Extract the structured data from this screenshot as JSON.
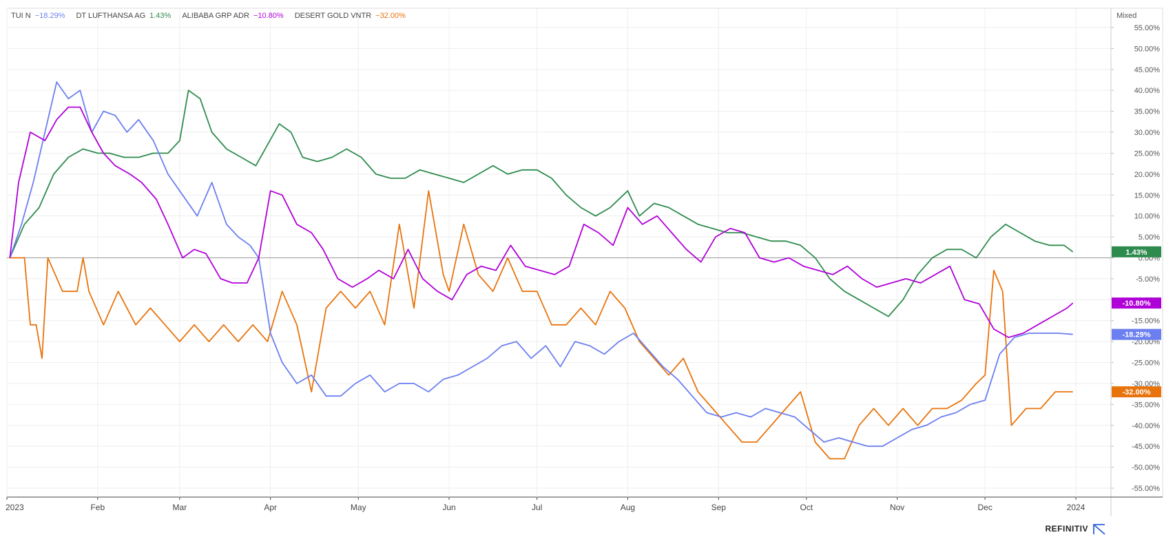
{
  "scale_label": "Mixed",
  "brand": "REFINITIV",
  "colors": {
    "TUI N": "#6b7ff0",
    "DT LUFTHANSA AG": "#2e8b4e",
    "ALIBABA GRP ADR": "#b000d8",
    "DESERT GOLD VNTR": "#e8730c",
    "baseline": "#999999",
    "grid": "#eeeeee"
  },
  "chart_data": {
    "type": "line",
    "title": "",
    "xlabel": "",
    "ylabel": "",
    "ylim": [
      -55,
      55
    ],
    "y_ticks": [
      "55.00%",
      "50.00%",
      "45.00%",
      "40.00%",
      "35.00%",
      "30.00%",
      "25.00%",
      "20.00%",
      "15.00%",
      "10.00%",
      "5.00%",
      "0.00%",
      "-5.00%",
      "-10.00%",
      "-15.00%",
      "-20.00%",
      "-25.00%",
      "-30.00%",
      "-35.00%",
      "-40.00%",
      "-45.00%",
      "-50.00%",
      "-55.00%"
    ],
    "x_tick_labels": [
      "2023",
      "Feb",
      "Mar",
      "Apr",
      "May",
      "Jun",
      "Jul",
      "Aug",
      "Sep",
      "Oct",
      "Nov",
      "Dec",
      "2024"
    ],
    "x_tick_dates": [
      "2023-01-01",
      "2023-02-01",
      "2023-03-01",
      "2023-04-01",
      "2023-05-01",
      "2023-06-01",
      "2023-07-01",
      "2023-08-01",
      "2023-09-01",
      "2023-10-01",
      "2023-11-01",
      "2023-12-01",
      "2024-01-01"
    ],
    "legend_position": "top-left",
    "grid": true,
    "series": [
      {
        "name": "TUI N",
        "last_label": "−18.29%",
        "badge_label": "-18.29%",
        "x": [
          "2023-01-02",
          "2023-01-06",
          "2023-01-10",
          "2023-01-14",
          "2023-01-18",
          "2023-01-22",
          "2023-01-26",
          "2023-01-30",
          "2023-02-03",
          "2023-02-07",
          "2023-02-11",
          "2023-02-15",
          "2023-02-20",
          "2023-02-25",
          "2023-03-02",
          "2023-03-07",
          "2023-03-12",
          "2023-03-17",
          "2023-03-21",
          "2023-03-25",
          "2023-03-28",
          "2023-04-01",
          "2023-04-05",
          "2023-04-10",
          "2023-04-15",
          "2023-04-20",
          "2023-04-25",
          "2023-04-30",
          "2023-05-05",
          "2023-05-10",
          "2023-05-15",
          "2023-05-20",
          "2023-05-25",
          "2023-05-30",
          "2023-06-04",
          "2023-06-09",
          "2023-06-14",
          "2023-06-19",
          "2023-06-24",
          "2023-06-29",
          "2023-07-04",
          "2023-07-09",
          "2023-07-14",
          "2023-07-19",
          "2023-07-24",
          "2023-07-29",
          "2023-08-03",
          "2023-08-08",
          "2023-08-13",
          "2023-08-18",
          "2023-08-23",
          "2023-08-28",
          "2023-09-02",
          "2023-09-07",
          "2023-09-12",
          "2023-09-17",
          "2023-09-22",
          "2023-09-27",
          "2023-10-02",
          "2023-10-07",
          "2023-10-12",
          "2023-10-17",
          "2023-10-22",
          "2023-10-27",
          "2023-11-01",
          "2023-11-06",
          "2023-11-11",
          "2023-11-16",
          "2023-11-21",
          "2023-11-26",
          "2023-12-01",
          "2023-12-06",
          "2023-12-11",
          "2023-12-16",
          "2023-12-21",
          "2023-12-26",
          "2023-12-31"
        ],
        "values": [
          0,
          8,
          18,
          30,
          42,
          38,
          40,
          30,
          35,
          34,
          30,
          33,
          28,
          20,
          15,
          10,
          18,
          8,
          5,
          3,
          0,
          -18,
          -25,
          -30,
          -28,
          -33,
          -33,
          -30,
          -28,
          -32,
          -30,
          -30,
          -32,
          -29,
          -28,
          -26,
          -24,
          -21,
          -20,
          -24,
          -21,
          -26,
          -20,
          -21,
          -23,
          -20,
          -18,
          -22,
          -26,
          -29,
          -33,
          -37,
          -38,
          -37,
          -38,
          -36,
          -37,
          -38,
          -41,
          -44,
          -43,
          -44,
          -45,
          -45,
          -43,
          -41,
          -40,
          -38,
          -37,
          -35,
          -34,
          -23,
          -19,
          -18,
          -18,
          -18,
          -18.29
        ]
      },
      {
        "name": "DT LUFTHANSA AG",
        "last_label": "1.43%",
        "badge_label": "1.43%",
        "x": [
          "2023-01-02",
          "2023-01-07",
          "2023-01-12",
          "2023-01-17",
          "2023-01-22",
          "2023-01-27",
          "2023-02-01",
          "2023-02-05",
          "2023-02-10",
          "2023-02-15",
          "2023-02-20",
          "2023-02-25",
          "2023-03-01",
          "2023-03-04",
          "2023-03-08",
          "2023-03-12",
          "2023-03-17",
          "2023-03-22",
          "2023-03-27",
          "2023-03-31",
          "2023-04-04",
          "2023-04-08",
          "2023-04-12",
          "2023-04-17",
          "2023-04-22",
          "2023-04-27",
          "2023-05-02",
          "2023-05-07",
          "2023-05-12",
          "2023-05-17",
          "2023-05-22",
          "2023-05-27",
          "2023-06-01",
          "2023-06-06",
          "2023-06-11",
          "2023-06-16",
          "2023-06-21",
          "2023-06-26",
          "2023-07-01",
          "2023-07-06",
          "2023-07-11",
          "2023-07-16",
          "2023-07-21",
          "2023-07-26",
          "2023-08-01",
          "2023-08-05",
          "2023-08-10",
          "2023-08-15",
          "2023-08-20",
          "2023-08-25",
          "2023-08-30",
          "2023-09-04",
          "2023-09-09",
          "2023-09-14",
          "2023-09-19",
          "2023-09-24",
          "2023-09-29",
          "2023-10-04",
          "2023-10-09",
          "2023-10-14",
          "2023-10-19",
          "2023-10-24",
          "2023-10-29",
          "2023-11-03",
          "2023-11-08",
          "2023-11-13",
          "2023-11-18",
          "2023-11-23",
          "2023-11-28",
          "2023-12-03",
          "2023-12-08",
          "2023-12-13",
          "2023-12-18",
          "2023-12-23",
          "2023-12-28",
          "2023-12-31"
        ],
        "values": [
          0,
          8,
          12,
          20,
          24,
          26,
          25,
          25,
          24,
          24,
          25,
          25,
          28,
          40,
          38,
          30,
          26,
          24,
          22,
          27,
          32,
          30,
          24,
          23,
          24,
          26,
          24,
          20,
          19,
          19,
          21,
          20,
          19,
          18,
          20,
          22,
          20,
          21,
          21,
          19,
          15,
          12,
          10,
          12,
          16,
          10,
          13,
          12,
          10,
          8,
          7,
          6,
          6,
          5,
          4,
          4,
          3,
          0,
          -5,
          -8,
          -10,
          -12,
          -14,
          -10,
          -4,
          0,
          2,
          2,
          0,
          5,
          8,
          6,
          4,
          3,
          3,
          1.43
        ]
      },
      {
        "name": "ALIBABA GRP ADR",
        "last_label": "−10.80%",
        "badge_label": "-10.80%",
        "x": [
          "2023-01-02",
          "2023-01-05",
          "2023-01-09",
          "2023-01-14",
          "2023-01-18",
          "2023-01-22",
          "2023-01-26",
          "2023-01-30",
          "2023-02-03",
          "2023-02-07",
          "2023-02-12",
          "2023-02-16",
          "2023-02-21",
          "2023-02-25",
          "2023-03-02",
          "2023-03-06",
          "2023-03-10",
          "2023-03-15",
          "2023-03-19",
          "2023-03-24",
          "2023-03-28",
          "2023-04-01",
          "2023-04-05",
          "2023-04-10",
          "2023-04-15",
          "2023-04-19",
          "2023-04-24",
          "2023-04-29",
          "2023-05-04",
          "2023-05-08",
          "2023-05-13",
          "2023-05-18",
          "2023-05-23",
          "2023-05-28",
          "2023-06-02",
          "2023-06-07",
          "2023-06-12",
          "2023-06-17",
          "2023-06-22",
          "2023-06-27",
          "2023-07-02",
          "2023-07-07",
          "2023-07-12",
          "2023-07-17",
          "2023-07-22",
          "2023-07-27",
          "2023-08-01",
          "2023-08-06",
          "2023-08-11",
          "2023-08-16",
          "2023-08-21",
          "2023-08-26",
          "2023-08-31",
          "2023-09-05",
          "2023-09-10",
          "2023-09-15",
          "2023-09-20",
          "2023-09-25",
          "2023-09-30",
          "2023-10-05",
          "2023-10-10",
          "2023-10-15",
          "2023-10-20",
          "2023-10-25",
          "2023-10-30",
          "2023-11-04",
          "2023-11-09",
          "2023-11-14",
          "2023-11-19",
          "2023-11-24",
          "2023-11-29",
          "2023-12-04",
          "2023-12-09",
          "2023-12-14",
          "2023-12-19",
          "2023-12-24",
          "2023-12-29",
          "2023-12-31"
        ],
        "values": [
          0,
          18,
          30,
          28,
          33,
          36,
          36,
          30,
          25,
          22,
          20,
          18,
          14,
          8,
          0,
          2,
          1,
          -5,
          -6,
          -6,
          0,
          16,
          15,
          8,
          6,
          2,
          -5,
          -7,
          -5,
          -3,
          -5,
          2,
          -5,
          -8,
          -10,
          -4,
          -2,
          -3,
          3,
          -2,
          -3,
          -4,
          -2,
          8,
          6,
          3,
          12,
          8,
          10,
          6,
          2,
          -1,
          5,
          7,
          6,
          0,
          -1,
          0,
          -2,
          -3,
          -4,
          -2,
          -5,
          -7,
          -6,
          -5,
          -6,
          -4,
          -2,
          -10,
          -11,
          -17,
          -19,
          -18,
          -16,
          -14,
          -12,
          -10.8
        ]
      },
      {
        "name": "DESERT GOLD VNTR",
        "last_label": "−32.00%",
        "badge_label": "-32.00%",
        "x": [
          "2023-01-02",
          "2023-01-07",
          "2023-01-09",
          "2023-01-11",
          "2023-01-13",
          "2023-01-15",
          "2023-01-20",
          "2023-01-25",
          "2023-01-27",
          "2023-01-29",
          "2023-02-03",
          "2023-02-08",
          "2023-02-14",
          "2023-02-19",
          "2023-02-24",
          "2023-03-01",
          "2023-03-06",
          "2023-03-11",
          "2023-03-16",
          "2023-03-21",
          "2023-03-26",
          "2023-03-31",
          "2023-04-05",
          "2023-04-10",
          "2023-04-15",
          "2023-04-20",
          "2023-04-25",
          "2023-04-30",
          "2023-05-05",
          "2023-05-10",
          "2023-05-15",
          "2023-05-20",
          "2023-05-25",
          "2023-05-27",
          "2023-05-30",
          "2023-06-01",
          "2023-06-06",
          "2023-06-11",
          "2023-06-16",
          "2023-06-21",
          "2023-06-26",
          "2023-07-01",
          "2023-07-06",
          "2023-07-11",
          "2023-07-16",
          "2023-07-21",
          "2023-07-26",
          "2023-07-31",
          "2023-08-05",
          "2023-08-10",
          "2023-08-15",
          "2023-08-20",
          "2023-08-25",
          "2023-08-30",
          "2023-09-04",
          "2023-09-09",
          "2023-09-14",
          "2023-09-19",
          "2023-09-24",
          "2023-09-29",
          "2023-10-04",
          "2023-10-09",
          "2023-10-14",
          "2023-10-19",
          "2023-10-24",
          "2023-10-29",
          "2023-11-03",
          "2023-11-08",
          "2023-11-13",
          "2023-11-18",
          "2023-11-23",
          "2023-11-28",
          "2023-12-01",
          "2023-12-04",
          "2023-12-07",
          "2023-12-10",
          "2023-12-15",
          "2023-12-20",
          "2023-12-25",
          "2023-12-31"
        ],
        "values": [
          0,
          0,
          -16,
          -16,
          -24,
          0,
          -8,
          -8,
          0,
          -8,
          -16,
          -8,
          -16,
          -12,
          -16,
          -20,
          -16,
          -20,
          -16,
          -20,
          -16,
          -20,
          -8,
          -16,
          -32,
          -12,
          -8,
          -12,
          -8,
          -16,
          8,
          -12,
          16,
          8,
          -4,
          -8,
          8,
          -4,
          -8,
          0,
          -8,
          -8,
          -16,
          -16,
          -12,
          -16,
          -8,
          -12,
          -20,
          -24,
          -28,
          -24,
          -32,
          -36,
          -40,
          -44,
          -44,
          -40,
          -36,
          -32,
          -44,
          -48,
          -48,
          -40,
          -36,
          -40,
          -36,
          -40,
          -36,
          -36,
          -34,
          -30,
          -28,
          -3,
          -8,
          -40,
          -36,
          -36,
          -32,
          -32
        ]
      }
    ]
  }
}
